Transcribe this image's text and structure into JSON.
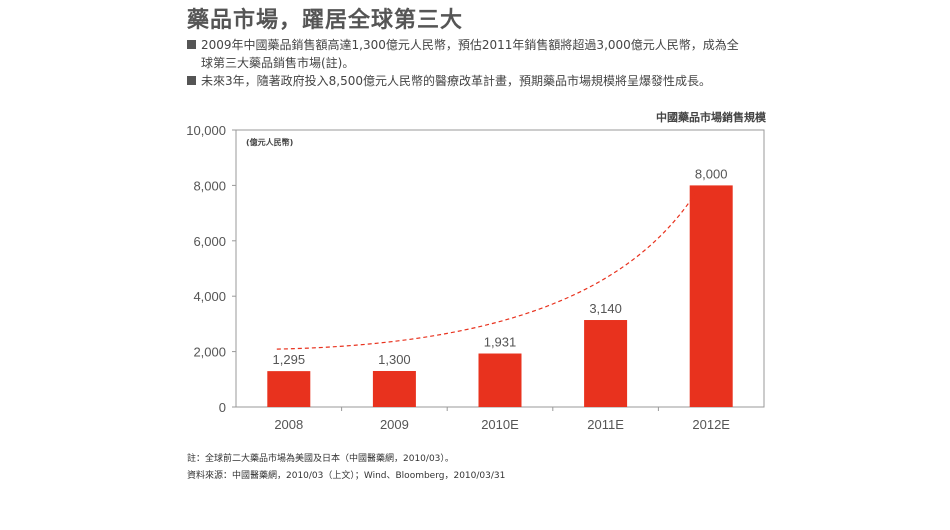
{
  "header": {
    "title": "藥品市場，躍居全球第三大"
  },
  "bullets": [
    {
      "line1": "2009年中國藥品銷售額高達1,300億元人民幣，預估2011年銷售額將超過3,000億元人民幣，成為全",
      "line2": "球第三大藥品銷售市場(註)。"
    },
    {
      "line1": "未來3年，隨著政府投入8,500億元人民幣的醫療改革計畫，預期藥品市場規模將呈爆發性成長。",
      "line2": ""
    }
  ],
  "chart_data": {
    "type": "bar",
    "title": "中國藥品市場銷售規模",
    "ylabel": "(億元人民幣)",
    "xlabel": "",
    "categories": [
      "2008",
      "2009",
      "2010E",
      "2011E",
      "2012E"
    ],
    "values": [
      1295,
      1300,
      1931,
      3140,
      8000
    ],
    "value_labels": [
      "1,295",
      "1,300",
      "1,931",
      "3,140",
      "8,000"
    ],
    "ylim": [
      0,
      10000
    ],
    "yticks": [
      0,
      2000,
      4000,
      6000,
      8000,
      10000
    ],
    "ytick_labels": [
      "0",
      "2,000",
      "4,000",
      "6,000",
      "8,000",
      "10,000"
    ],
    "grid": false,
    "legend": "none",
    "colors": {
      "bar": "#e8321e",
      "trend": "#e8321e",
      "axis": "#999999"
    }
  },
  "footnotes": {
    "note": "註：全球前二大藥品市場為美國及日本（中國醫藥網，2010/03）。",
    "source": "資料來源：中國醫藥網，2010/03（上文）；Wind、Bloomberg，2010/03/31"
  }
}
